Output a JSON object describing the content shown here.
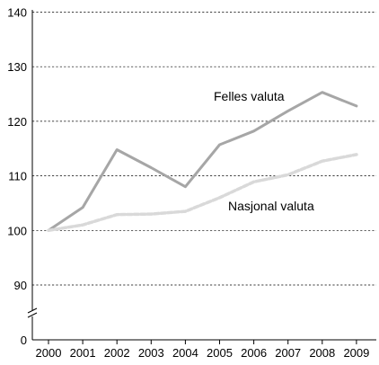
{
  "chart_data": {
    "type": "line",
    "title": "",
    "xlabel": "",
    "ylabel": "",
    "x": [
      2000,
      2001,
      2002,
      2003,
      2004,
      2005,
      2006,
      2007,
      2008,
      2009
    ],
    "x_tick_labels": [
      "2000",
      "2001",
      "2002",
      "2003",
      "2004",
      "2005",
      "2006",
      "2007",
      "2008",
      "2009"
    ],
    "y_ticks": [
      0,
      90,
      100,
      110,
      120,
      130,
      140
    ],
    "y_tick_labels": [
      "0",
      "90",
      "100",
      "110",
      "120",
      "130",
      "140"
    ],
    "ylim": [
      0,
      140
    ],
    "axis_break": "between 0 and 90",
    "grid": "horizontal dashed",
    "series": [
      {
        "name": "Felles valuta",
        "values": [
          100,
          104.2,
          114.8,
          111.5,
          108.0,
          115.7,
          118.2,
          121.9,
          125.3,
          122.8
        ],
        "color": "#a6a6a6",
        "style": "solid"
      },
      {
        "name": "Nasjonal valuta",
        "values": [
          100,
          101.0,
          102.9,
          103.0,
          103.5,
          106.0,
          108.9,
          110.2,
          112.7,
          113.9
        ],
        "color": "#d9d9d9",
        "style": "dashed"
      }
    ]
  }
}
